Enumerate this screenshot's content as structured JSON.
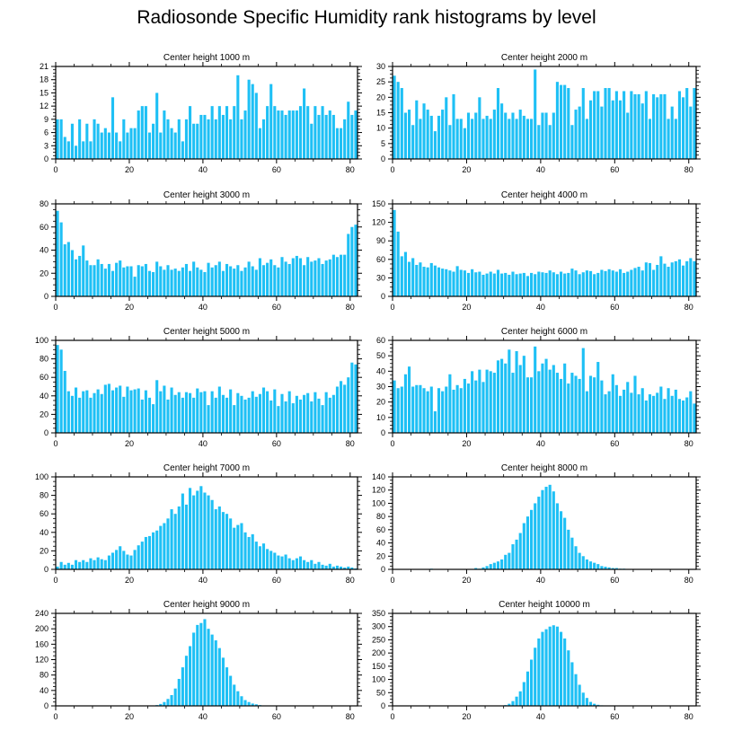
{
  "chart_data": {
    "type": "bar",
    "title": "Radiosonde Specific Humidity rank histograms by level",
    "bar_color": "#1ec0f5",
    "panels": [
      {
        "title": "Center height 1000 m",
        "xlim": [
          0,
          82
        ],
        "xticks": [
          0,
          20,
          40,
          60,
          80
        ],
        "ylim": [
          0,
          21
        ],
        "yticks": [
          0,
          3,
          6,
          9,
          12,
          15,
          18,
          21
        ],
        "values": [
          9,
          9,
          5,
          4,
          8,
          3,
          9,
          4,
          8,
          4,
          9,
          8,
          6,
          7,
          6,
          14,
          6,
          4,
          9,
          6,
          7,
          7,
          11,
          12,
          12,
          6,
          8,
          15,
          6,
          11,
          9,
          7,
          6,
          9,
          4,
          9,
          12,
          8,
          8,
          10,
          10,
          9,
          12,
          9,
          12,
          10,
          12,
          9,
          12,
          19,
          9,
          11,
          18,
          17,
          15,
          7,
          9,
          12,
          17,
          12,
          11,
          11,
          10,
          11,
          11,
          11,
          12,
          16,
          12,
          8,
          12,
          10,
          12,
          10,
          11,
          10,
          7,
          7,
          9,
          13,
          10,
          11
        ]
      },
      {
        "title": "Center height 2000 m",
        "xlim": [
          0,
          82
        ],
        "xticks": [
          0,
          20,
          40,
          60,
          80
        ],
        "ylim": [
          0,
          30
        ],
        "yticks": [
          0,
          5,
          10,
          15,
          20,
          25,
          30
        ],
        "values": [
          27,
          25,
          23,
          15,
          16,
          11,
          19,
          13,
          18,
          16,
          14,
          9,
          14,
          16,
          20,
          11,
          21,
          13,
          13,
          10,
          15,
          13,
          15,
          20,
          13,
          14,
          13,
          16,
          23,
          18,
          15,
          13,
          15,
          13,
          16,
          14,
          13,
          13,
          29,
          11,
          15,
          15,
          11,
          15,
          25,
          24,
          24,
          23,
          11,
          16,
          17,
          23,
          13,
          19,
          22,
          22,
          17,
          23,
          23,
          19,
          22,
          19,
          22,
          15,
          22,
          21,
          21,
          18,
          22,
          13,
          21,
          20,
          21,
          21,
          13,
          17,
          13,
          22,
          20,
          23,
          17,
          23
        ]
      },
      {
        "title": "Center height 3000 m",
        "xlim": [
          0,
          82
        ],
        "xticks": [
          0,
          20,
          40,
          60,
          80
        ],
        "ylim": [
          0,
          80
        ],
        "yticks": [
          0,
          20,
          40,
          60,
          80
        ],
        "values": [
          74,
          64,
          45,
          47,
          40,
          32,
          35,
          44,
          31,
          27,
          27,
          32,
          28,
          24,
          28,
          22,
          29,
          31,
          25,
          26,
          26,
          17,
          27,
          26,
          28,
          22,
          21,
          30,
          26,
          23,
          27,
          23,
          24,
          22,
          25,
          28,
          22,
          30,
          25,
          23,
          21,
          29,
          25,
          27,
          30,
          22,
          28,
          26,
          24,
          27,
          22,
          25,
          30,
          26,
          23,
          33,
          27,
          29,
          32,
          27,
          25,
          34,
          30,
          28,
          33,
          35,
          33,
          27,
          34,
          30,
          31,
          33,
          28,
          31,
          32,
          36,
          34,
          36,
          36,
          54,
          60,
          62
        ]
      },
      {
        "title": "Center height 4000 m",
        "xlim": [
          0,
          82
        ],
        "xticks": [
          0,
          20,
          40,
          60,
          80
        ],
        "ylim": [
          0,
          150
        ],
        "yticks": [
          0,
          30,
          60,
          90,
          120,
          150
        ],
        "values": [
          140,
          105,
          65,
          72,
          56,
          62,
          51,
          55,
          48,
          47,
          54,
          50,
          47,
          45,
          44,
          42,
          40,
          49,
          43,
          42,
          38,
          44,
          39,
          40,
          35,
          37,
          40,
          37,
          43,
          37,
          38,
          35,
          40,
          36,
          37,
          38,
          33,
          38,
          36,
          40,
          39,
          38,
          42,
          39,
          36,
          40,
          37,
          38,
          45,
          42,
          36,
          39,
          42,
          41,
          36,
          38,
          43,
          41,
          44,
          42,
          40,
          44,
          38,
          40,
          43,
          46,
          48,
          42,
          55,
          54,
          43,
          51,
          65,
          53,
          48,
          55,
          57,
          60,
          50,
          57,
          62,
          57
        ]
      },
      {
        "title": "Center height 5000 m",
        "xlim": [
          0,
          82
        ],
        "xticks": [
          0,
          20,
          40,
          60,
          80
        ],
        "ylim": [
          0,
          100
        ],
        "yticks": [
          0,
          20,
          40,
          60,
          80,
          100
        ],
        "values": [
          95,
          90,
          67,
          45,
          40,
          49,
          38,
          45,
          46,
          38,
          43,
          47,
          42,
          52,
          53,
          46,
          49,
          51,
          39,
          50,
          46,
          47,
          48,
          36,
          46,
          38,
          31,
          57,
          45,
          51,
          36,
          49,
          41,
          44,
          38,
          44,
          43,
          38,
          48,
          44,
          45,
          30,
          45,
          38,
          50,
          41,
          38,
          47,
          30,
          43,
          40,
          36,
          38,
          45,
          39,
          42,
          49,
          45,
          35,
          47,
          29,
          42,
          34,
          45,
          32,
          40,
          36,
          41,
          43,
          34,
          44,
          37,
          30,
          44,
          38,
          41,
          50,
          56,
          52,
          60,
          76,
          74
        ]
      },
      {
        "title": "Center height 6000 m",
        "xlim": [
          0,
          82
        ],
        "xticks": [
          0,
          20,
          40,
          60,
          80
        ],
        "ylim": [
          0,
          60
        ],
        "yticks": [
          0,
          10,
          20,
          30,
          40,
          50,
          60
        ],
        "values": [
          34,
          29,
          30,
          38,
          43,
          30,
          31,
          31,
          29,
          27,
          30,
          14,
          29,
          27,
          30,
          38,
          28,
          31,
          29,
          35,
          32,
          40,
          34,
          41,
          33,
          41,
          40,
          39,
          47,
          48,
          45,
          54,
          39,
          53,
          44,
          50,
          36,
          36,
          56,
          40,
          45,
          48,
          41,
          44,
          39,
          35,
          45,
          32,
          39,
          37,
          35,
          55,
          27,
          37,
          36,
          46,
          34,
          25,
          27,
          38,
          31,
          24,
          28,
          33,
          26,
          37,
          25,
          29,
          21,
          25,
          24,
          26,
          30,
          22,
          29,
          24,
          28,
          22,
          21,
          23,
          27,
          19
        ]
      },
      {
        "title": "Center height 7000 m",
        "xlim": [
          0,
          82
        ],
        "xticks": [
          0,
          20,
          40,
          60,
          80
        ],
        "ylim": [
          0,
          100
        ],
        "yticks": [
          0,
          20,
          40,
          60,
          80,
          100
        ],
        "values": [
          3,
          8,
          5,
          7,
          5,
          10,
          8,
          10,
          8,
          12,
          10,
          13,
          11,
          10,
          15,
          18,
          21,
          25,
          20,
          16,
          15,
          21,
          26,
          30,
          35,
          36,
          40,
          42,
          47,
          50,
          55,
          65,
          60,
          68,
          82,
          70,
          88,
          80,
          85,
          90,
          83,
          80,
          75,
          65,
          68,
          62,
          60,
          55,
          45,
          48,
          50,
          40,
          35,
          38,
          30,
          25,
          28,
          22,
          20,
          18,
          15,
          14,
          16,
          12,
          10,
          12,
          14,
          10,
          8,
          10,
          6,
          8,
          5,
          4,
          6,
          3,
          4,
          3,
          2,
          3,
          2,
          1
        ]
      },
      {
        "title": "Center height 8000 m",
        "xlim": [
          0,
          82
        ],
        "xticks": [
          0,
          20,
          40,
          60,
          80
        ],
        "ylim": [
          0,
          140
        ],
        "yticks": [
          0,
          20,
          40,
          60,
          80,
          100,
          120,
          140
        ],
        "values": [
          0,
          0,
          0,
          0,
          0,
          0,
          0,
          0,
          0,
          0,
          1,
          0,
          0,
          0,
          0,
          0,
          0,
          0,
          0,
          0,
          0,
          0,
          2,
          1,
          3,
          5,
          8,
          10,
          12,
          15,
          22,
          25,
          38,
          45,
          55,
          70,
          80,
          90,
          100,
          110,
          120,
          125,
          128,
          118,
          100,
          88,
          78,
          60,
          48,
          35,
          25,
          20,
          15,
          12,
          10,
          8,
          5,
          4,
          3,
          2,
          2,
          1,
          1,
          0,
          0,
          0,
          0,
          0,
          0,
          0,
          0,
          0,
          0,
          0,
          0,
          0,
          0,
          0,
          0,
          0,
          0,
          0
        ]
      },
      {
        "title": "Center height 9000 m",
        "xlim": [
          0,
          82
        ],
        "xticks": [
          0,
          20,
          40,
          60,
          80
        ],
        "ylim": [
          0,
          240
        ],
        "yticks": [
          0,
          40,
          80,
          120,
          160,
          200,
          240
        ],
        "values": [
          0,
          0,
          0,
          0,
          0,
          0,
          0,
          0,
          0,
          0,
          0,
          0,
          0,
          0,
          0,
          0,
          0,
          0,
          0,
          0,
          0,
          0,
          0,
          0,
          0,
          0,
          0,
          2,
          5,
          10,
          18,
          28,
          45,
          70,
          100,
          130,
          155,
          190,
          210,
          215,
          225,
          200,
          185,
          170,
          150,
          125,
          100,
          78,
          55,
          38,
          25,
          15,
          10,
          6,
          4,
          2,
          1,
          1,
          0,
          0,
          0,
          0,
          0,
          0,
          0,
          0,
          0,
          0,
          0,
          0,
          0,
          0,
          0,
          0,
          0,
          0,
          0,
          0,
          0,
          0,
          0,
          0
        ]
      },
      {
        "title": "Center height 10000 m",
        "xlim": [
          0,
          82
        ],
        "xticks": [
          0,
          20,
          40,
          60,
          80
        ],
        "ylim": [
          0,
          350
        ],
        "yticks": [
          0,
          50,
          100,
          150,
          200,
          250,
          300,
          350
        ],
        "values": [
          0,
          0,
          0,
          0,
          0,
          0,
          0,
          0,
          0,
          0,
          0,
          0,
          0,
          0,
          0,
          0,
          0,
          0,
          0,
          0,
          0,
          0,
          0,
          0,
          0,
          0,
          0,
          0,
          0,
          0,
          3,
          8,
          18,
          35,
          55,
          90,
          130,
          175,
          220,
          255,
          280,
          290,
          300,
          305,
          300,
          280,
          255,
          210,
          165,
          120,
          80,
          50,
          30,
          15,
          8,
          4,
          2,
          1,
          0,
          0,
          0,
          0,
          0,
          0,
          0,
          0,
          0,
          0,
          0,
          0,
          0,
          0,
          0,
          0,
          0,
          0,
          0,
          0,
          0,
          0,
          0,
          0
        ]
      }
    ]
  }
}
